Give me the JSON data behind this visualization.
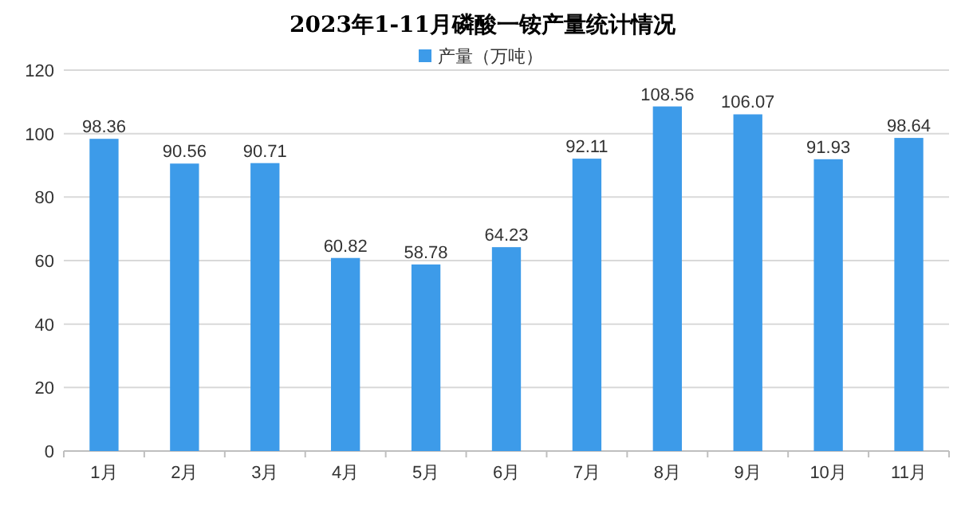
{
  "chart_data": {
    "type": "bar",
    "title": "2023年1-11月磷酸一铵产量统计情况",
    "categories": [
      "1月",
      "2月",
      "3月",
      "4月",
      "5月",
      "6月",
      "7月",
      "8月",
      "9月",
      "10月",
      "11月"
    ],
    "series": [
      {
        "name": "产量（万吨）",
        "color": "#3d9be9",
        "values": [
          98.36,
          90.56,
          90.71,
          60.82,
          58.78,
          64.23,
          92.11,
          108.56,
          106.07,
          91.93,
          98.64
        ]
      }
    ],
    "ylim": [
      0,
      120
    ],
    "yticks": [
      0,
      20,
      40,
      60,
      80,
      100,
      120
    ],
    "grid": "y",
    "legend": "top",
    "data_labels": true
  }
}
